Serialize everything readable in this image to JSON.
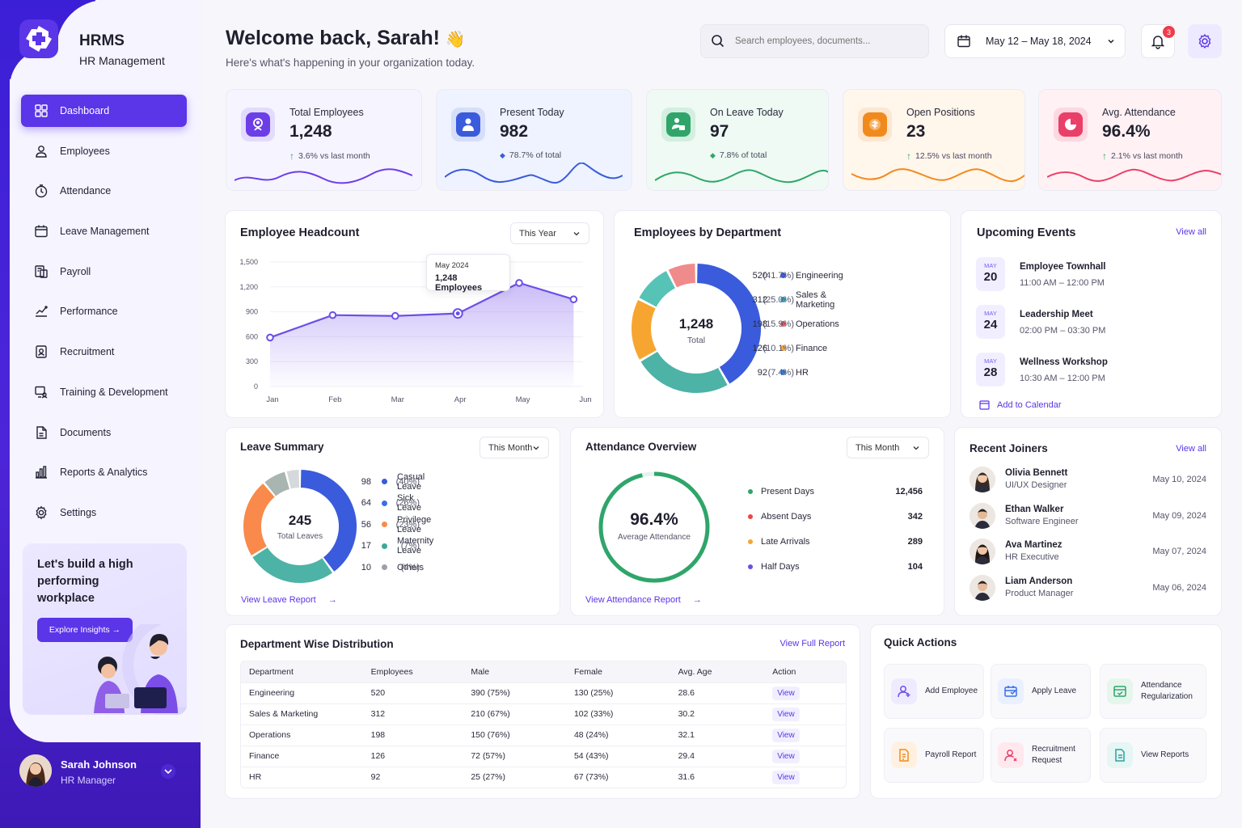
{
  "brand": {
    "title": "HRMS",
    "subtitle": "HR Management"
  },
  "nav": [
    {
      "label": "Dashboard",
      "icon": "grid-icon",
      "active": true
    },
    {
      "label": "Employees",
      "icon": "user-icon"
    },
    {
      "label": "Attendance",
      "icon": "clock-icon"
    },
    {
      "label": "Leave Management",
      "icon": "calendar-icon"
    },
    {
      "label": "Payroll",
      "icon": "payroll-icon"
    },
    {
      "label": "Performance",
      "icon": "chart-line-icon"
    },
    {
      "label": "Recruitment",
      "icon": "recruitment-icon"
    },
    {
      "label": "Training & Development",
      "icon": "training-icon"
    },
    {
      "label": "Documents",
      "icon": "document-icon"
    },
    {
      "label": "Reports & Analytics",
      "icon": "bar-chart-icon"
    },
    {
      "label": "Settings",
      "icon": "gear-icon"
    }
  ],
  "promo": {
    "text": "Let's build a high performing workplace",
    "button": "Explore Insights"
  },
  "user": {
    "name": "Sarah Johnson",
    "role": "HR Manager"
  },
  "header": {
    "title": "Welcome back, Sarah!",
    "emoji": "👋",
    "subtitle": "Here's what's happening in your organization today.",
    "search_placeholder": "Search employees, documents...",
    "date_range": "May 12 – May 18, 2024",
    "notifications": "3"
  },
  "kpis": [
    {
      "label": "Total Employees",
      "value": "1,248",
      "trend": "3.6%",
      "trend_suffix": " vs last month",
      "color": "#6c3ee8",
      "bg": "#f6f4ff"
    },
    {
      "label": "Present Today",
      "value": "982",
      "trend": "78.7% of total",
      "trend_suffix": "",
      "color": "#3a5bdc",
      "bg": "#eef3ff"
    },
    {
      "label": "On Leave Today",
      "value": "97",
      "trend": "7.8% of total",
      "trend_suffix": "",
      "color": "#2fa56a",
      "bg": "#eefaf3"
    },
    {
      "label": "Open Positions",
      "value": "23",
      "trend": "12.5%",
      "trend_suffix": " vs last month",
      "color": "#f18a1c",
      "bg": "#fff6ec"
    },
    {
      "label": "Avg. Attendance",
      "value": "96.4%",
      "trend": "2.1%",
      "trend_suffix": " vs last month",
      "color": "#ea3f68",
      "bg": "#fff1f4"
    }
  ],
  "headcount": {
    "title": "Employee Headcount",
    "filter": "This Year",
    "tooltip_month": "May 2024",
    "tooltip_value": "1,248 Employees"
  },
  "chart_data": [
    {
      "type": "area",
      "title": "Employee Headcount",
      "categories": [
        "Jan",
        "Feb",
        "Mar",
        "Apr",
        "May",
        "Jun"
      ],
      "x": [
        0,
        1,
        2,
        3,
        3.98,
        4.85
      ],
      "values": [
        590,
        860,
        850,
        880,
        1248,
        1050
      ],
      "ylim": [
        0,
        1500
      ],
      "yticks": [
        "0",
        "300",
        "600",
        "900",
        "1,200",
        "1,500"
      ],
      "color": "#6c4ee8"
    },
    {
      "type": "pie",
      "title": "Employees by Department",
      "center_value": "1,248",
      "center_label": "Total",
      "slices": [
        {
          "name": "Engineering",
          "value": 520,
          "pct": "(41.7%)",
          "color": "#3a5bdc"
        },
        {
          "name": "Sales & Marketing",
          "value": 312,
          "pct": "(25.0%)",
          "color": "#4cb3a6"
        },
        {
          "name": "Operations",
          "value": 198,
          "pct": "(15.9%)",
          "color": "#f7a531"
        },
        {
          "name": "Finance",
          "value": 126,
          "pct": "(10.1%)",
          "color": "#57c3b6"
        },
        {
          "name": "HR",
          "value": 92,
          "pct": "(7.4%)",
          "color": "#f08b8b"
        }
      ],
      "legend_colors": [
        "#3a5bdc",
        "#34a8c7",
        "#ef5a5a",
        "#f7a531",
        "#3a7edc"
      ]
    },
    {
      "type": "pie",
      "title": "Leave Summary",
      "center_value": "245",
      "center_label": "Total Leaves",
      "slices": [
        {
          "name": "Casual Leave",
          "value": 98,
          "pct": "(40%)",
          "color": "#3a5bdc"
        },
        {
          "name": "Sick Leave",
          "value": 64,
          "pct": "(26%)",
          "color": "#4cb3a6"
        },
        {
          "name": "Privilege Leave",
          "value": 56,
          "pct": "(23%)",
          "color": "#f98a4b"
        },
        {
          "name": "Maternity Leave",
          "value": 17,
          "pct": "(7%)",
          "color": "#a8b5b0"
        },
        {
          "name": "Others",
          "value": 10,
          "pct": "(4%)",
          "color": "#d5d9dc"
        }
      ],
      "legend_colors": [
        "#3a5bdc",
        "#3a6ee8",
        "#f98a4b",
        "#3aa89a",
        "#9ca0a8"
      ]
    }
  ],
  "departments": {
    "title": "Employees by Department"
  },
  "events": {
    "title": "Upcoming Events",
    "view_all": "View all",
    "add": "Add to Calendar",
    "items": [
      {
        "month": "MAY",
        "day": "20",
        "title": "Employee Townhall",
        "time": "11:00 AM – 12:00 PM"
      },
      {
        "month": "MAY",
        "day": "24",
        "title": "Leadership Meet",
        "time": "02:00 PM – 03:30 PM"
      },
      {
        "month": "MAY",
        "day": "28",
        "title": "Wellness Workshop",
        "time": "10:30 AM – 12:00 PM"
      }
    ]
  },
  "leave": {
    "title": "Leave Summary",
    "filter": "This Month",
    "link": "View Leave Report"
  },
  "attendance": {
    "title": "Attendance Overview",
    "filter": "This Month",
    "value": "96.4%",
    "label": "Average Attendance",
    "percent": 96.4,
    "link": "View Attendance Report",
    "rows": [
      {
        "label": "Present Days",
        "value": "12,456",
        "color": "#2fa56a"
      },
      {
        "label": "Absent Days",
        "value": "342",
        "color": "#ef4444"
      },
      {
        "label": "Late Arrivals",
        "value": "289",
        "color": "#f7a531"
      },
      {
        "label": "Half Days",
        "value": "104",
        "color": "#6c4ee8"
      }
    ]
  },
  "joiners": {
    "title": "Recent Joiners",
    "view_all": "View all",
    "items": [
      {
        "name": "Olivia Bennett",
        "role": "UI/UX Designer",
        "date": "May 10, 2024"
      },
      {
        "name": "Ethan Walker",
        "role": "Software Engineer",
        "date": "May 09, 2024"
      },
      {
        "name": "Ava Martinez",
        "role": "HR Executive",
        "date": "May 07, 2024"
      },
      {
        "name": "Liam Anderson",
        "role": "Product Manager",
        "date": "May 06, 2024"
      }
    ]
  },
  "distribution": {
    "title": "Department Wise Distribution",
    "link": "View Full Report",
    "headers": [
      "Department",
      "Employees",
      "Male",
      "Female",
      "Avg. Age",
      "Action"
    ],
    "rows": [
      [
        "Engineering",
        "520",
        "390 (75%)",
        "130 (25%)",
        "28.6",
        "View"
      ],
      [
        "Sales & Marketing",
        "312",
        "210 (67%)",
        "102 (33%)",
        "30.2",
        "View"
      ],
      [
        "Operations",
        "198",
        "150 (76%)",
        "48 (24%)",
        "32.1",
        "View"
      ],
      [
        "Finance",
        "126",
        "72 (57%)",
        "54 (43%)",
        "29.4",
        "View"
      ],
      [
        "HR",
        "92",
        "25 (27%)",
        "67 (73%)",
        "31.6",
        "View"
      ]
    ]
  },
  "quick": {
    "title": "Quick Actions",
    "items": [
      {
        "label": "Add Employee",
        "icon": "add-user-icon",
        "color": "#6c4ee8",
        "bg": "#efebff"
      },
      {
        "label": "Apply Leave",
        "icon": "apply-leave-icon",
        "color": "#3a6ee8",
        "bg": "#eaf0ff"
      },
      {
        "label": "Attendance Regularization",
        "icon": "attendance-check-icon",
        "color": "#2fa56a",
        "bg": "#e6f6ed"
      },
      {
        "label": "Payroll Report",
        "icon": "payroll-report-icon",
        "color": "#f18a1c",
        "bg": "#fff0e0"
      },
      {
        "label": "Recruitment Request",
        "icon": "recruitment-request-icon",
        "color": "#ea3f68",
        "bg": "#ffe9ee"
      },
      {
        "label": "View Reports",
        "icon": "view-reports-icon",
        "color": "#2aa39a",
        "bg": "#e5f6f4"
      }
    ]
  }
}
